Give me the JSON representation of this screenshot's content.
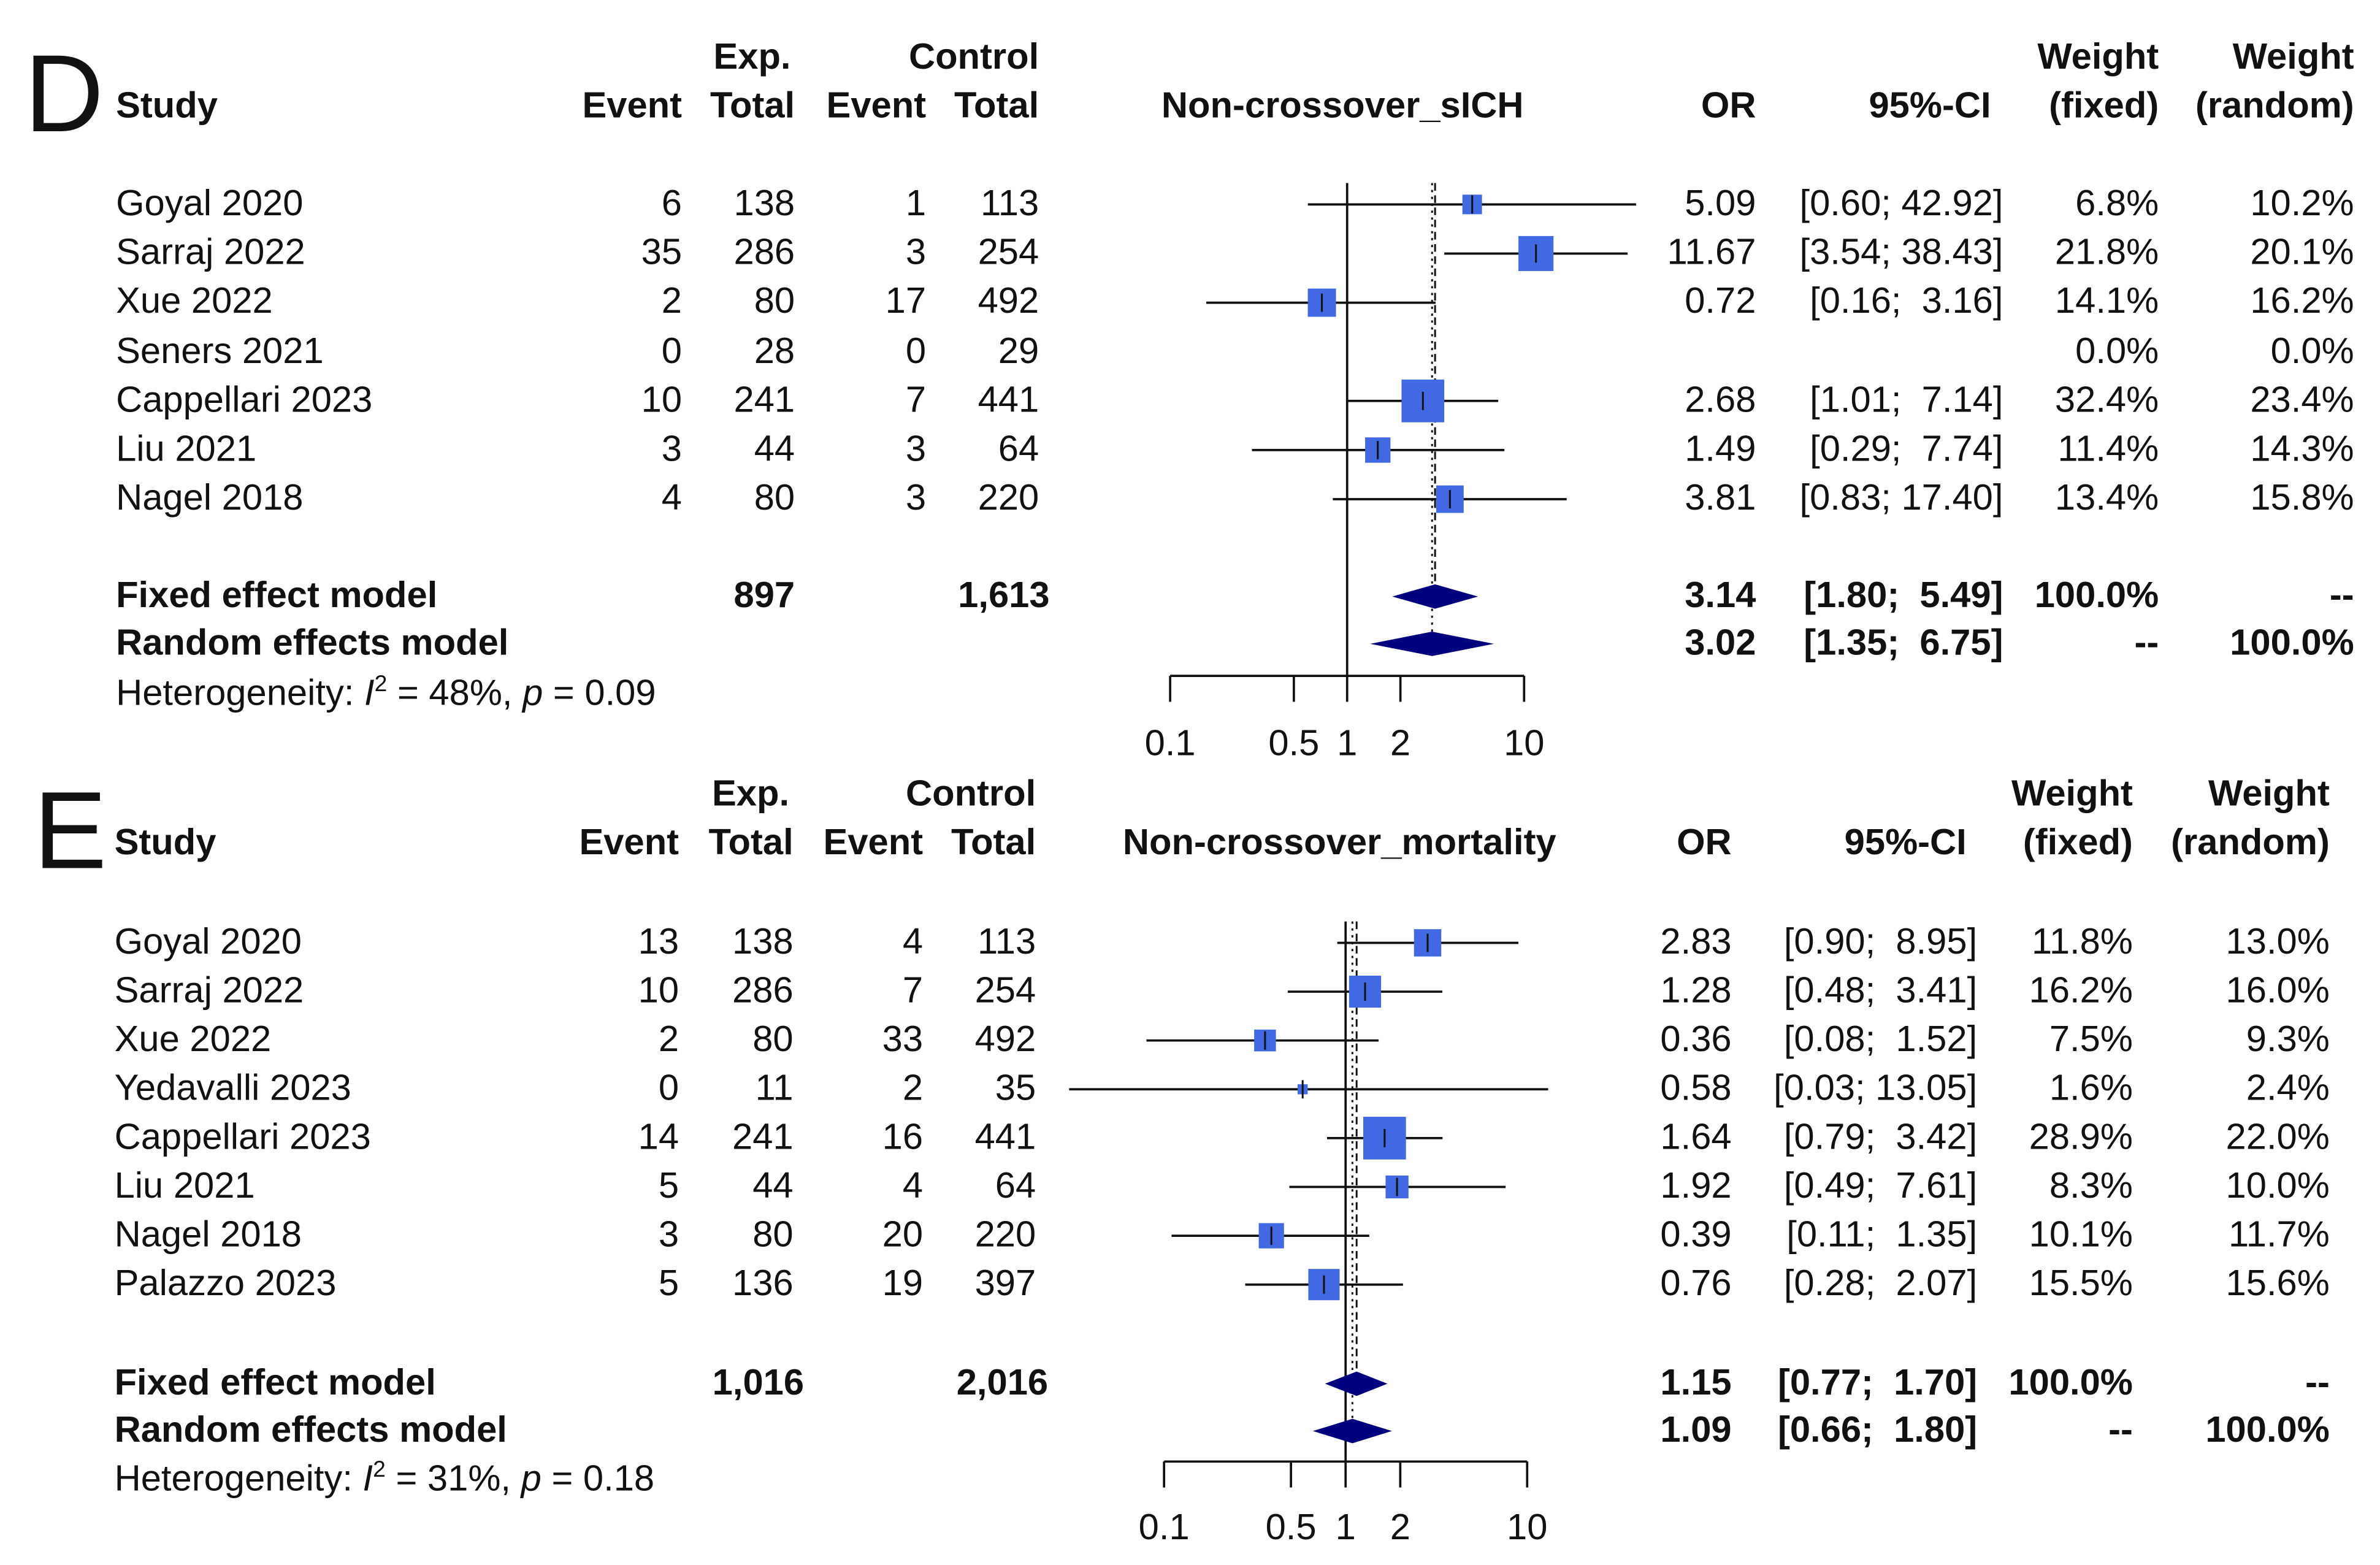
{
  "colors": {
    "square": "#4169E1",
    "diamond": "#00007F",
    "line": "#111111"
  },
  "headers": {
    "study": "Study",
    "exp": "Exp.",
    "control": "Control",
    "event": "Event",
    "total": "Total",
    "or": "OR",
    "ci": "95%-CI",
    "weight": "Weight",
    "fixed": "(fixed)",
    "random": "(random)"
  },
  "chart_data": [
    {
      "type": "forest",
      "panel_label": "D",
      "title": "Non-crossover_sICH",
      "x_scale": "log",
      "x_ticks": [
        0.1,
        0.5,
        1,
        2,
        10
      ],
      "x_tick_labels": [
        "0.1",
        "0.5",
        "1",
        "2",
        "10"
      ],
      "studies": [
        {
          "name": "Goyal 2020",
          "e_event": "6",
          "e_total": "138",
          "c_event": "1",
          "c_total": "113",
          "or_label": "5.09",
          "ci_label": "[0.60; 42.92]",
          "w_fixed": "6.8%",
          "w_random": "10.2%",
          "or": 5.09,
          "lo": 0.6,
          "hi": 42.92,
          "wf": 6.8
        },
        {
          "name": "Sarraj 2022",
          "e_event": "35",
          "e_total": "286",
          "c_event": "3",
          "c_total": "254",
          "or_label": "11.67",
          "ci_label": "[3.54; 38.43]",
          "w_fixed": "21.8%",
          "w_random": "20.1%",
          "or": 11.67,
          "lo": 3.54,
          "hi": 38.43,
          "wf": 21.8
        },
        {
          "name": "Xue 2022",
          "e_event": "2",
          "e_total": "80",
          "c_event": "17",
          "c_total": "492",
          "or_label": "0.72",
          "ci_label": "[0.16;  3.16]",
          "w_fixed": "14.1%",
          "w_random": "16.2%",
          "or": 0.72,
          "lo": 0.16,
          "hi": 3.16,
          "wf": 14.1
        },
        {
          "name": "Seners 2021",
          "e_event": "0",
          "e_total": "28",
          "c_event": "0",
          "c_total": "29",
          "or_label": "",
          "ci_label": "",
          "w_fixed": "0.0%",
          "w_random": "0.0%",
          "or": null,
          "lo": null,
          "hi": null,
          "wf": 0
        },
        {
          "name": "Cappellari 2023",
          "e_event": "10",
          "e_total": "241",
          "c_event": "7",
          "c_total": "441",
          "or_label": "2.68",
          "ci_label": "[1.01;  7.14]",
          "w_fixed": "32.4%",
          "w_random": "23.4%",
          "or": 2.68,
          "lo": 1.01,
          "hi": 7.14,
          "wf": 32.4
        },
        {
          "name": "Liu 2021",
          "e_event": "3",
          "e_total": "44",
          "c_event": "3",
          "c_total": "64",
          "or_label": "1.49",
          "ci_label": "[0.29;  7.74]",
          "w_fixed": "11.4%",
          "w_random": "14.3%",
          "or": 1.49,
          "lo": 0.29,
          "hi": 7.74,
          "wf": 11.4
        },
        {
          "name": "Nagel 2018",
          "e_event": "4",
          "e_total": "80",
          "c_event": "3",
          "c_total": "220",
          "or_label": "3.81",
          "ci_label": "[0.83; 17.40]",
          "w_fixed": "13.4%",
          "w_random": "15.8%",
          "or": 3.81,
          "lo": 0.83,
          "hi": 17.4,
          "wf": 13.4
        }
      ],
      "fixed": {
        "name": "Fixed effect model",
        "e_total": "897",
        "c_total": "1,613",
        "or_label": "3.14",
        "ci_label": "[1.80;  5.49]",
        "w_fixed": "100.0%",
        "w_random": "--",
        "or": 3.14,
        "lo": 1.8,
        "hi": 5.49
      },
      "random": {
        "name": "Random effects model",
        "or_label": "3.02",
        "ci_label": "[1.35;  6.75]",
        "w_fixed": "--",
        "w_random": "100.0%",
        "or": 3.02,
        "lo": 1.35,
        "hi": 6.75
      },
      "heterogeneity": {
        "label": "Heterogeneity: ",
        "i_symbol": "I",
        "i_sup": "2",
        "i_value": " = 48%, ",
        "p_symbol": "p",
        "p_value": " = 0.09"
      }
    },
    {
      "type": "forest",
      "panel_label": "E",
      "title": "Non-crossover_mortality",
      "x_scale": "log",
      "x_ticks": [
        0.1,
        0.5,
        1,
        2,
        10
      ],
      "x_tick_labels": [
        "0.1",
        "0.5",
        "1",
        "2",
        "10"
      ],
      "studies": [
        {
          "name": "Goyal 2020",
          "e_event": "13",
          "e_total": "138",
          "c_event": "4",
          "c_total": "113",
          "or_label": "2.83",
          "ci_label": "[0.90;  8.95]",
          "w_fixed": "11.8%",
          "w_random": "13.0%",
          "or": 2.83,
          "lo": 0.9,
          "hi": 8.95,
          "wf": 11.8
        },
        {
          "name": "Sarraj 2022",
          "e_event": "10",
          "e_total": "286",
          "c_event": "7",
          "c_total": "254",
          "or_label": "1.28",
          "ci_label": "[0.48;  3.41]",
          "w_fixed": "16.2%",
          "w_random": "16.0%",
          "or": 1.28,
          "lo": 0.48,
          "hi": 3.41,
          "wf": 16.2
        },
        {
          "name": "Xue 2022",
          "e_event": "2",
          "e_total": "80",
          "c_event": "33",
          "c_total": "492",
          "or_label": "0.36",
          "ci_label": "[0.08;  1.52]",
          "w_fixed": "7.5%",
          "w_random": "9.3%",
          "or": 0.36,
          "lo": 0.08,
          "hi": 1.52,
          "wf": 7.5
        },
        {
          "name": "Yedavalli 2023",
          "e_event": "0",
          "e_total": "11",
          "c_event": "2",
          "c_total": "35",
          "or_label": "0.58",
          "ci_label": "[0.03; 13.05]",
          "w_fixed": "1.6%",
          "w_random": "2.4%",
          "or": 0.58,
          "lo": 0.03,
          "hi": 13.05,
          "wf": 1.6
        },
        {
          "name": "Cappellari 2023",
          "e_event": "14",
          "e_total": "241",
          "c_event": "16",
          "c_total": "441",
          "or_label": "1.64",
          "ci_label": "[0.79;  3.42]",
          "w_fixed": "28.9%",
          "w_random": "22.0%",
          "or": 1.64,
          "lo": 0.79,
          "hi": 3.42,
          "wf": 28.9
        },
        {
          "name": "Liu 2021",
          "e_event": "5",
          "e_total": "44",
          "c_event": "4",
          "c_total": "64",
          "or_label": "1.92",
          "ci_label": "[0.49;  7.61]",
          "w_fixed": "8.3%",
          "w_random": "10.0%",
          "or": 1.92,
          "lo": 0.49,
          "hi": 7.61,
          "wf": 8.3
        },
        {
          "name": "Nagel 2018",
          "e_event": "3",
          "e_total": "80",
          "c_event": "20",
          "c_total": "220",
          "or_label": "0.39",
          "ci_label": "[0.11;  1.35]",
          "w_fixed": "10.1%",
          "w_random": "11.7%",
          "or": 0.39,
          "lo": 0.11,
          "hi": 1.35,
          "wf": 10.1
        },
        {
          "name": "Palazzo 2023",
          "e_event": "5",
          "e_total": "136",
          "c_event": "19",
          "c_total": "397",
          "or_label": "0.76",
          "ci_label": "[0.28;  2.07]",
          "w_fixed": "15.5%",
          "w_random": "15.6%",
          "or": 0.76,
          "lo": 0.28,
          "hi": 2.07,
          "wf": 15.5
        }
      ],
      "fixed": {
        "name": "Fixed effect model",
        "e_total": "1,016",
        "c_total": "2,016",
        "or_label": "1.15",
        "ci_label": "[0.77;  1.70]",
        "w_fixed": "100.0%",
        "w_random": "--",
        "or": 1.15,
        "lo": 0.77,
        "hi": 1.7
      },
      "random": {
        "name": "Random effects model",
        "or_label": "1.09",
        "ci_label": "[0.66;  1.80]",
        "w_fixed": "--",
        "w_random": "100.0%",
        "or": 1.09,
        "lo": 0.66,
        "hi": 1.8
      },
      "heterogeneity": {
        "label": "Heterogeneity: ",
        "i_symbol": "I",
        "i_sup": "2",
        "i_value": " = 31%, ",
        "p_symbol": "p",
        "p_value": " = 0.18"
      }
    }
  ]
}
